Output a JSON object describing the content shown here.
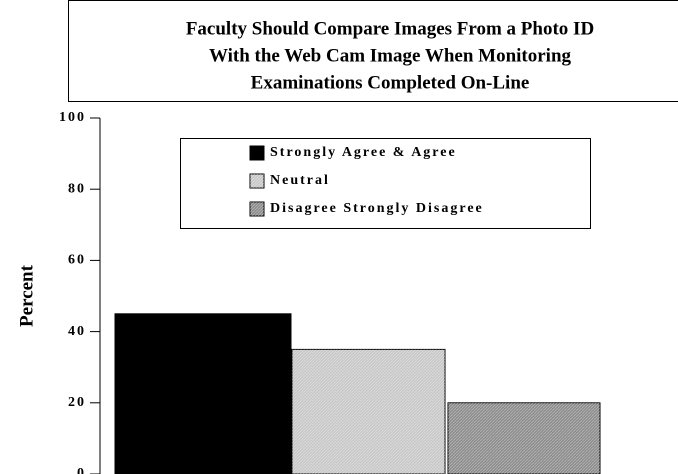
{
  "chart_data": {
    "type": "bar",
    "title": [
      "Faculty Should Compare Images From a Photo ID",
      "With the Web Cam Image When Monitoring",
      "Examinations Completed On-Line"
    ],
    "y_label": "Percent",
    "series": [
      {
        "name": "Strongly Agree & Agree",
        "color": "#000000",
        "values": [
          45
        ]
      },
      {
        "name": "Neutral",
        "color": "#c8c8c8",
        "values": [
          35
        ]
      },
      {
        "name": "Disagree Strongly Disagree",
        "color": "#8c8c8c",
        "values": [
          20
        ]
      }
    ],
    "ylim": [
      0,
      100
    ],
    "yticks": [
      0,
      20,
      40,
      60,
      80,
      100
    ],
    "grid": false,
    "legend": "top-right"
  }
}
